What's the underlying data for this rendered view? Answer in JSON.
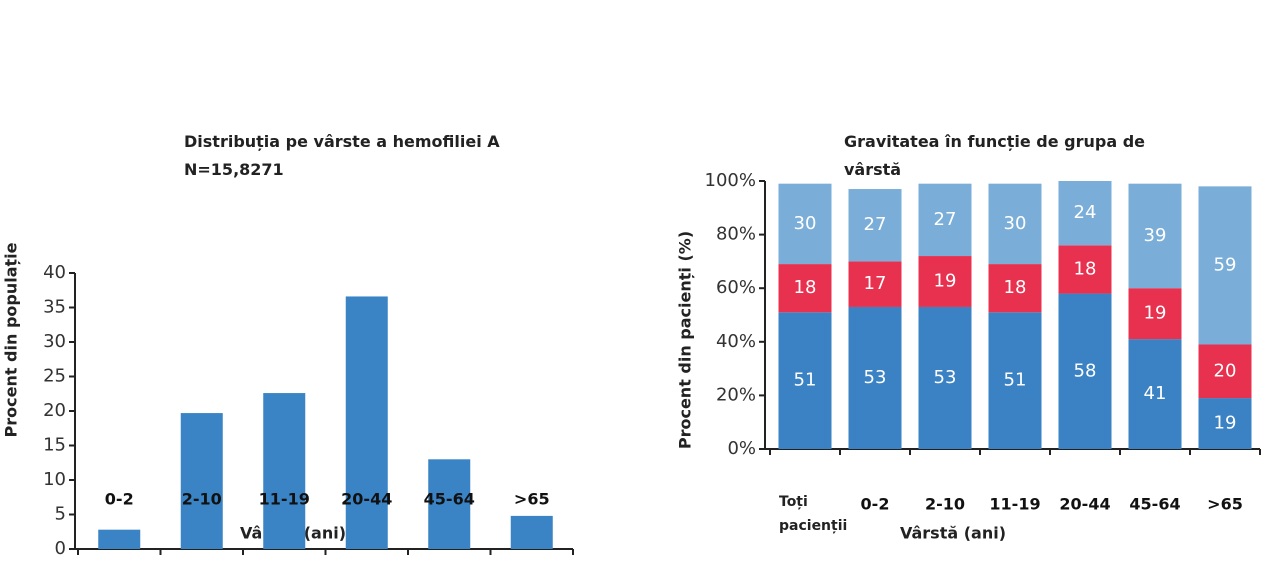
{
  "chart_data": [
    {
      "type": "bar",
      "title": "Distribuția pe vârste a hemofiliei A",
      "subtitle": "N=15,8271",
      "y_label": "Procent din populație",
      "x_label": "Vârstă (ani)",
      "categories": [
        "0-2",
        "2-10",
        "11-19",
        "20-44",
        "45-64",
        ">65"
      ],
      "values": [
        2.8,
        19.7,
        22.6,
        36.6,
        13,
        4.8
      ],
      "color": "#3a84c6",
      "ylim": [
        0,
        40
      ],
      "yticks": [
        0,
        5,
        10,
        15,
        20,
        25,
        30,
        35,
        40
      ]
    },
    {
      "type": "stacked_bar",
      "title": "Gravitatea în funcție de grupa de vârstă",
      "y_label": "Procent din pacienți (%)",
      "x_label": "Vârstă (ani)",
      "categories": [
        "Toți pacienții",
        "0-2",
        "2-10",
        "11-19",
        "20-44",
        "45-64",
        ">65"
      ],
      "series": [
        {
          "color": "#3a82c4",
          "values": [
            51,
            53,
            53,
            51,
            58,
            41,
            19
          ]
        },
        {
          "color": "#e8304f",
          "values": [
            18,
            17,
            19,
            18,
            18,
            19,
            20
          ]
        },
        {
          "color": "#7aaed8",
          "values": [
            30,
            27,
            27,
            30,
            24,
            39,
            59
          ]
        }
      ],
      "ylim": [
        0,
        100
      ],
      "yticks": [
        {
          "value": 0,
          "label": "0%"
        },
        {
          "value": 20,
          "label": "20%"
        },
        {
          "value": 40,
          "label": "40%"
        },
        {
          "value": 60,
          "label": "60%"
        },
        {
          "value": 80,
          "label": "80%"
        },
        {
          "value": 100,
          "label": "100%"
        }
      ]
    }
  ]
}
